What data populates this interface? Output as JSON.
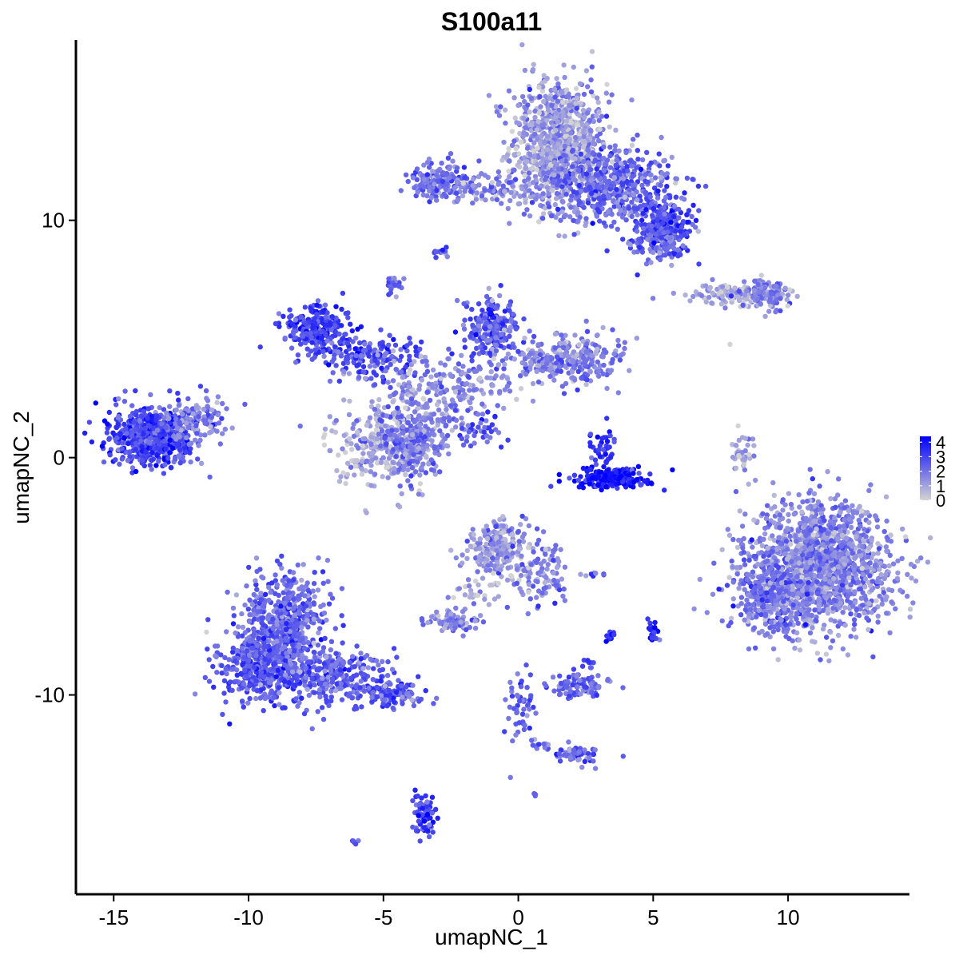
{
  "chart_data": {
    "type": "scatter",
    "title": "S100a11",
    "xlabel": "umapNC_1",
    "ylabel": "umapNC_2",
    "xlim": [
      -16.4,
      14.5
    ],
    "ylim": [
      -18.4,
      17.6
    ],
    "x_ticks": [
      -15,
      -10,
      -5,
      0,
      5,
      10
    ],
    "x_tick_labels": [
      "-15",
      "-10",
      "-5",
      "0",
      "5",
      "10"
    ],
    "y_ticks": [
      -10,
      0,
      10
    ],
    "y_tick_labels": [
      "-10",
      "0",
      "10"
    ],
    "grid": false,
    "legend_position": "right",
    "color_scale": {
      "low": "#d3d3d3",
      "high": "#0000ff",
      "min": 0,
      "max": 4.4,
      "breaks": [
        0,
        1,
        2,
        3,
        4
      ],
      "break_labels": [
        "0",
        "1",
        "2",
        "3",
        "4"
      ]
    },
    "clusters": [
      {
        "cx": 1.5,
        "cy": 13.2,
        "sx": 0.9,
        "sy": 1.4,
        "n": 900,
        "mean_expr": 1.2
      },
      {
        "cx": 3.5,
        "cy": 11.5,
        "sx": 1.2,
        "sy": 0.8,
        "n": 500,
        "mean_expr": 2.2
      },
      {
        "cx": 5.5,
        "cy": 9.7,
        "sx": 0.5,
        "sy": 0.5,
        "n": 250,
        "mean_expr": 2.8
      },
      {
        "cx": -2.8,
        "cy": 11.6,
        "sx": 0.7,
        "sy": 0.4,
        "n": 180,
        "mean_expr": 2.0
      },
      {
        "cx": -0.5,
        "cy": 11.2,
        "sx": 1.0,
        "sy": 0.25,
        "n": 90,
        "mean_expr": 1.6
      },
      {
        "cx": 5.0,
        "cy": 8.9,
        "sx": 0.5,
        "sy": 0.4,
        "n": 80,
        "mean_expr": 2.3
      },
      {
        "cx": -2.9,
        "cy": 8.7,
        "sx": 0.15,
        "sy": 0.1,
        "n": 14,
        "mean_expr": 2.3
      },
      {
        "cx": -4.6,
        "cy": 7.3,
        "sx": 0.2,
        "sy": 0.2,
        "n": 22,
        "mean_expr": 2.0
      },
      {
        "cx": 8.0,
        "cy": 6.9,
        "sx": 0.9,
        "sy": 0.2,
        "n": 130,
        "mean_expr": 0.9
      },
      {
        "cx": 9.3,
        "cy": 6.9,
        "sx": 0.4,
        "sy": 0.3,
        "n": 90,
        "mean_expr": 1.6
      },
      {
        "cx": -7.4,
        "cy": 5.4,
        "sx": 0.6,
        "sy": 0.5,
        "n": 260,
        "mean_expr": 2.9
      },
      {
        "cx": -5.4,
        "cy": 4.2,
        "sx": 0.9,
        "sy": 0.5,
        "n": 180,
        "mean_expr": 2.6
      },
      {
        "cx": -1.0,
        "cy": 5.5,
        "sx": 0.5,
        "sy": 0.7,
        "n": 200,
        "mean_expr": 2.6
      },
      {
        "cx": 1.8,
        "cy": 4.1,
        "sx": 1.0,
        "sy": 0.5,
        "n": 300,
        "mean_expr": 1.8
      },
      {
        "cx": -2.5,
        "cy": 3.0,
        "sx": 1.4,
        "sy": 0.7,
        "n": 200,
        "mean_expr": 1.5
      },
      {
        "cx": -5.0,
        "cy": 0.5,
        "sx": 0.9,
        "sy": 0.9,
        "n": 300,
        "mean_expr": 1.0
      },
      {
        "cx": -3.8,
        "cy": 0.8,
        "sx": 0.6,
        "sy": 0.8,
        "n": 200,
        "mean_expr": 1.9
      },
      {
        "cx": -1.6,
        "cy": 1.1,
        "sx": 0.5,
        "sy": 0.35,
        "n": 45,
        "mean_expr": 2.4
      },
      {
        "cx": -13.6,
        "cy": 0.9,
        "sx": 0.8,
        "sy": 0.6,
        "n": 600,
        "mean_expr": 2.9
      },
      {
        "cx": -12.0,
        "cy": 1.7,
        "sx": 0.6,
        "sy": 0.5,
        "n": 120,
        "mean_expr": 1.8
      },
      {
        "cx": 3.5,
        "cy": -0.9,
        "sx": 0.7,
        "sy": 0.2,
        "n": 200,
        "mean_expr": 4.1
      },
      {
        "cx": 3.2,
        "cy": 0.5,
        "sx": 0.3,
        "sy": 0.5,
        "n": 40,
        "mean_expr": 3.3
      },
      {
        "cx": 8.3,
        "cy": 0.3,
        "sx": 0.2,
        "sy": 0.5,
        "n": 40,
        "mean_expr": 1.0
      },
      {
        "cx": 11.2,
        "cy": -4.5,
        "sx": 1.3,
        "sy": 1.3,
        "n": 1500,
        "mean_expr": 1.6
      },
      {
        "cx": 9.3,
        "cy": -5.8,
        "sx": 0.7,
        "sy": 0.8,
        "n": 300,
        "mean_expr": 2.0
      },
      {
        "cx": -0.8,
        "cy": -3.8,
        "sx": 0.5,
        "sy": 0.55,
        "n": 240,
        "mean_expr": 1.3
      },
      {
        "cx": 0.8,
        "cy": -4.9,
        "sx": 0.6,
        "sy": 0.7,
        "n": 110,
        "mean_expr": 1.7
      },
      {
        "cx": -1.5,
        "cy": -5.5,
        "sx": 0.6,
        "sy": 0.35,
        "n": 30,
        "mean_expr": 0.8
      },
      {
        "cx": -2.4,
        "cy": -6.9,
        "sx": 0.5,
        "sy": 0.25,
        "n": 80,
        "mean_expr": 1.6
      },
      {
        "cx": -8.7,
        "cy": -6.9,
        "sx": 0.8,
        "sy": 1.0,
        "n": 500,
        "mean_expr": 2.3
      },
      {
        "cx": -9.5,
        "cy": -8.8,
        "sx": 0.8,
        "sy": 0.7,
        "n": 450,
        "mean_expr": 2.5
      },
      {
        "cx": -6.9,
        "cy": -9.2,
        "sx": 1.1,
        "sy": 0.6,
        "n": 300,
        "mean_expr": 2.3
      },
      {
        "cx": -4.8,
        "cy": -10.0,
        "sx": 0.6,
        "sy": 0.25,
        "n": 120,
        "mean_expr": 2.6
      },
      {
        "cx": 2.2,
        "cy": -9.6,
        "sx": 0.5,
        "sy": 0.3,
        "n": 110,
        "mean_expr": 2.3
      },
      {
        "cx": 2.6,
        "cy": -8.7,
        "sx": 0.1,
        "sy": 0.1,
        "n": 8,
        "mean_expr": 2.5
      },
      {
        "cx": 5.0,
        "cy": -7.3,
        "sx": 0.1,
        "sy": 0.25,
        "n": 25,
        "mean_expr": 3.6
      },
      {
        "cx": 3.4,
        "cy": -7.5,
        "sx": 0.08,
        "sy": 0.12,
        "n": 10,
        "mean_expr": 3.3
      },
      {
        "cx": 2.8,
        "cy": -4.9,
        "sx": 0.2,
        "sy": 0.08,
        "n": 10,
        "mean_expr": 2.0
      },
      {
        "cx": 0.0,
        "cy": -10.5,
        "sx": 0.3,
        "sy": 1.0,
        "n": 50,
        "mean_expr": 2.5
      },
      {
        "cx": 2.2,
        "cy": -12.5,
        "sx": 0.5,
        "sy": 0.2,
        "n": 50,
        "mean_expr": 2.3
      },
      {
        "cx": 0.8,
        "cy": -12.1,
        "sx": 0.3,
        "sy": 0.1,
        "n": 14,
        "mean_expr": 2.0
      },
      {
        "cx": -3.5,
        "cy": -15.0,
        "sx": 0.2,
        "sy": 0.5,
        "n": 65,
        "mean_expr": 3.1
      },
      {
        "cx": 0.6,
        "cy": -14.2,
        "sx": 0.05,
        "sy": 0.05,
        "n": 4,
        "mean_expr": 2.5
      },
      {
        "cx": -6.1,
        "cy": -16.2,
        "sx": 0.1,
        "sy": 0.05,
        "n": 5,
        "mean_expr": 3.0
      },
      {
        "cx": 7.8,
        "cy": 4.8,
        "sx": 0.05,
        "sy": 0.05,
        "n": 1,
        "mean_expr": 1.0
      }
    ]
  }
}
